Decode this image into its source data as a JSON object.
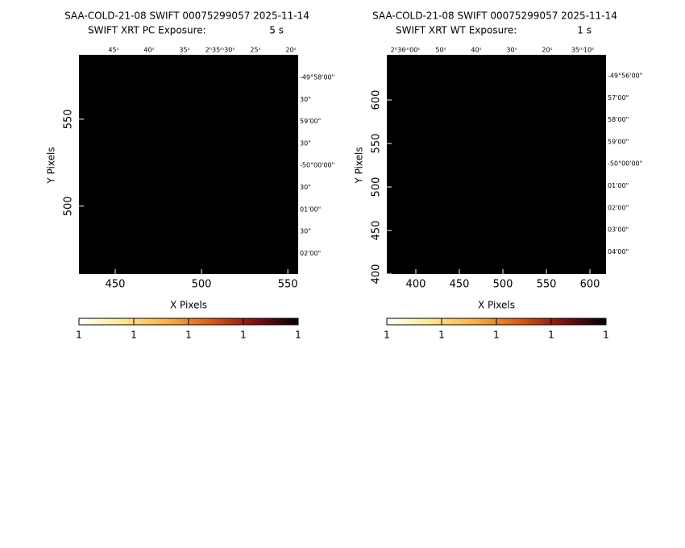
{
  "panels": [
    {
      "title": "SAA-COLD-21-08 SWIFT 00075299057 2025-11-14",
      "subtitle": "SWIFT XRT PC Exposure:",
      "exposure": "5 s",
      "x_label": "X Pixels",
      "y_label": "Y Pixels",
      "xlim": [
        429,
        556
      ],
      "xticks": [
        450,
        500,
        550
      ],
      "ylim": [
        461,
        587
      ],
      "yticks": [
        500,
        550
      ],
      "ra_labels": [
        "45ˢ",
        "40ˢ",
        "35ˢ",
        "2ʰ35ᵐ30ˢ",
        "25ˢ",
        "20ˢ"
      ],
      "dec_labels": [
        "-49°58'00\"",
        "30\"",
        "59'00\"",
        "30\"",
        "-50°00'00\"",
        "30\"",
        "01'00\"",
        "30\"",
        "02'00\""
      ],
      "colorbar_labels": [
        1,
        1,
        1,
        1,
        1
      ]
    },
    {
      "title": "SAA-COLD-21-08 SWIFT 00075299057 2025-11-14",
      "subtitle": "SWIFT XRT WT Exposure:",
      "exposure": "1 s",
      "x_label": "X Pixels",
      "y_label": "Y Pixels",
      "xlim": [
        366.7,
        618.5
      ],
      "xticks": [
        400,
        450,
        500,
        550,
        600
      ],
      "ylim": [
        400,
        651.9
      ],
      "yticks": [
        400,
        450,
        500,
        550,
        600
      ],
      "ra_labels": [
        "2ʰ36ᵐ00ˢ",
        "50ˢ",
        "40ˢ",
        "30ˢ",
        "20ˢ",
        "35ᵐ10ˢ"
      ],
      "dec_labels": [
        "-49°56'00\"",
        "57'00\"",
        "58'00\"",
        "59'00\"",
        "-50°00'00\"",
        "01'00\"",
        "02'00\"",
        "03'00\"",
        "04'00\""
      ],
      "colorbar_labels": [
        1,
        1,
        1,
        1,
        1
      ]
    }
  ]
}
